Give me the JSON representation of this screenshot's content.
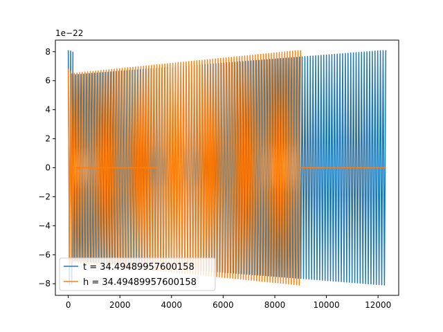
{
  "chart_data": {
    "type": "line",
    "title": "",
    "xlabel": "",
    "ylabel": "",
    "y_offset_label": "1e−22",
    "xlim": [
      -500,
      12800
    ],
    "ylim": [
      -8.8,
      8.8
    ],
    "x_ticks": [
      0,
      2000,
      4000,
      6000,
      8000,
      10000,
      12000
    ],
    "x_tick_labels": [
      "0",
      "2000",
      "4000",
      "6000",
      "8000",
      "10000",
      "12000"
    ],
    "y_ticks": [
      -8,
      -6,
      -4,
      -2,
      0,
      2,
      4,
      6,
      8
    ],
    "y_tick_labels": [
      "−8",
      "−6",
      "−4",
      "−2",
      "0",
      "2",
      "4",
      "6",
      "8"
    ],
    "grid": false,
    "legend_position": "lower-left",
    "series": [
      {
        "name": "t = 34.49489957600158",
        "color": "#1f77b4",
        "segments": [
          {
            "kind": "oscillation",
            "x_start": 0,
            "x_end": 180,
            "amp_start": 8.1,
            "amp_end": 8.0,
            "cycles": 2
          },
          {
            "kind": "oscillation",
            "x_start": 180,
            "x_end": 12300,
            "amp_start": 6.4,
            "amp_end": 8.1,
            "cycles": 116
          }
        ]
      },
      {
        "name": "h = 34.49489957600158",
        "color": "#ff7f0e",
        "segments": [
          {
            "kind": "oscillation",
            "x_start": 0,
            "x_end": 130,
            "amp_start": 6.8,
            "amp_end": 6.6,
            "cycles": 1.5
          },
          {
            "kind": "flat",
            "x_start": 130,
            "x_end": 3450,
            "value": 0
          },
          {
            "kind": "oscillation",
            "x_start": 130,
            "x_end": 9000,
            "amp_start": 6.5,
            "amp_end": 8.1,
            "cycles": 86
          },
          {
            "kind": "flat",
            "x_start": 9000,
            "x_end": 12300,
            "value": 0
          }
        ]
      }
    ]
  }
}
